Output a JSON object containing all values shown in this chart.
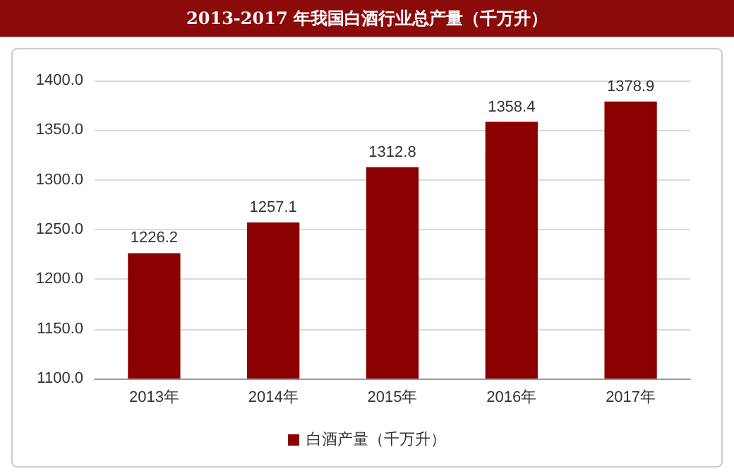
{
  "chart_data": {
    "type": "bar",
    "title": "2013-2017 年我国白酒行业总产量（千万升）",
    "categories": [
      "2013年",
      "2014年",
      "2015年",
      "2016年",
      "2017年"
    ],
    "series": [
      {
        "name": "白酒产量（千万升）",
        "color": "#8b0000",
        "values": [
          1226.2,
          1257.1,
          1312.8,
          1358.4,
          1378.9
        ]
      }
    ],
    "ylim": [
      1100,
      1400
    ],
    "yticks": [
      {
        "value": 1100,
        "label": "1100.0"
      },
      {
        "value": 1150,
        "label": "1150.0"
      },
      {
        "value": 1200,
        "label": "1200.0"
      },
      {
        "value": 1250,
        "label": "1250.0"
      },
      {
        "value": 1300,
        "label": "1300.0"
      },
      {
        "value": 1350,
        "label": "1350.0"
      },
      {
        "value": 1400,
        "label": "1400.0"
      }
    ],
    "grid": "y",
    "legend": "bottom",
    "data_labels": true
  }
}
